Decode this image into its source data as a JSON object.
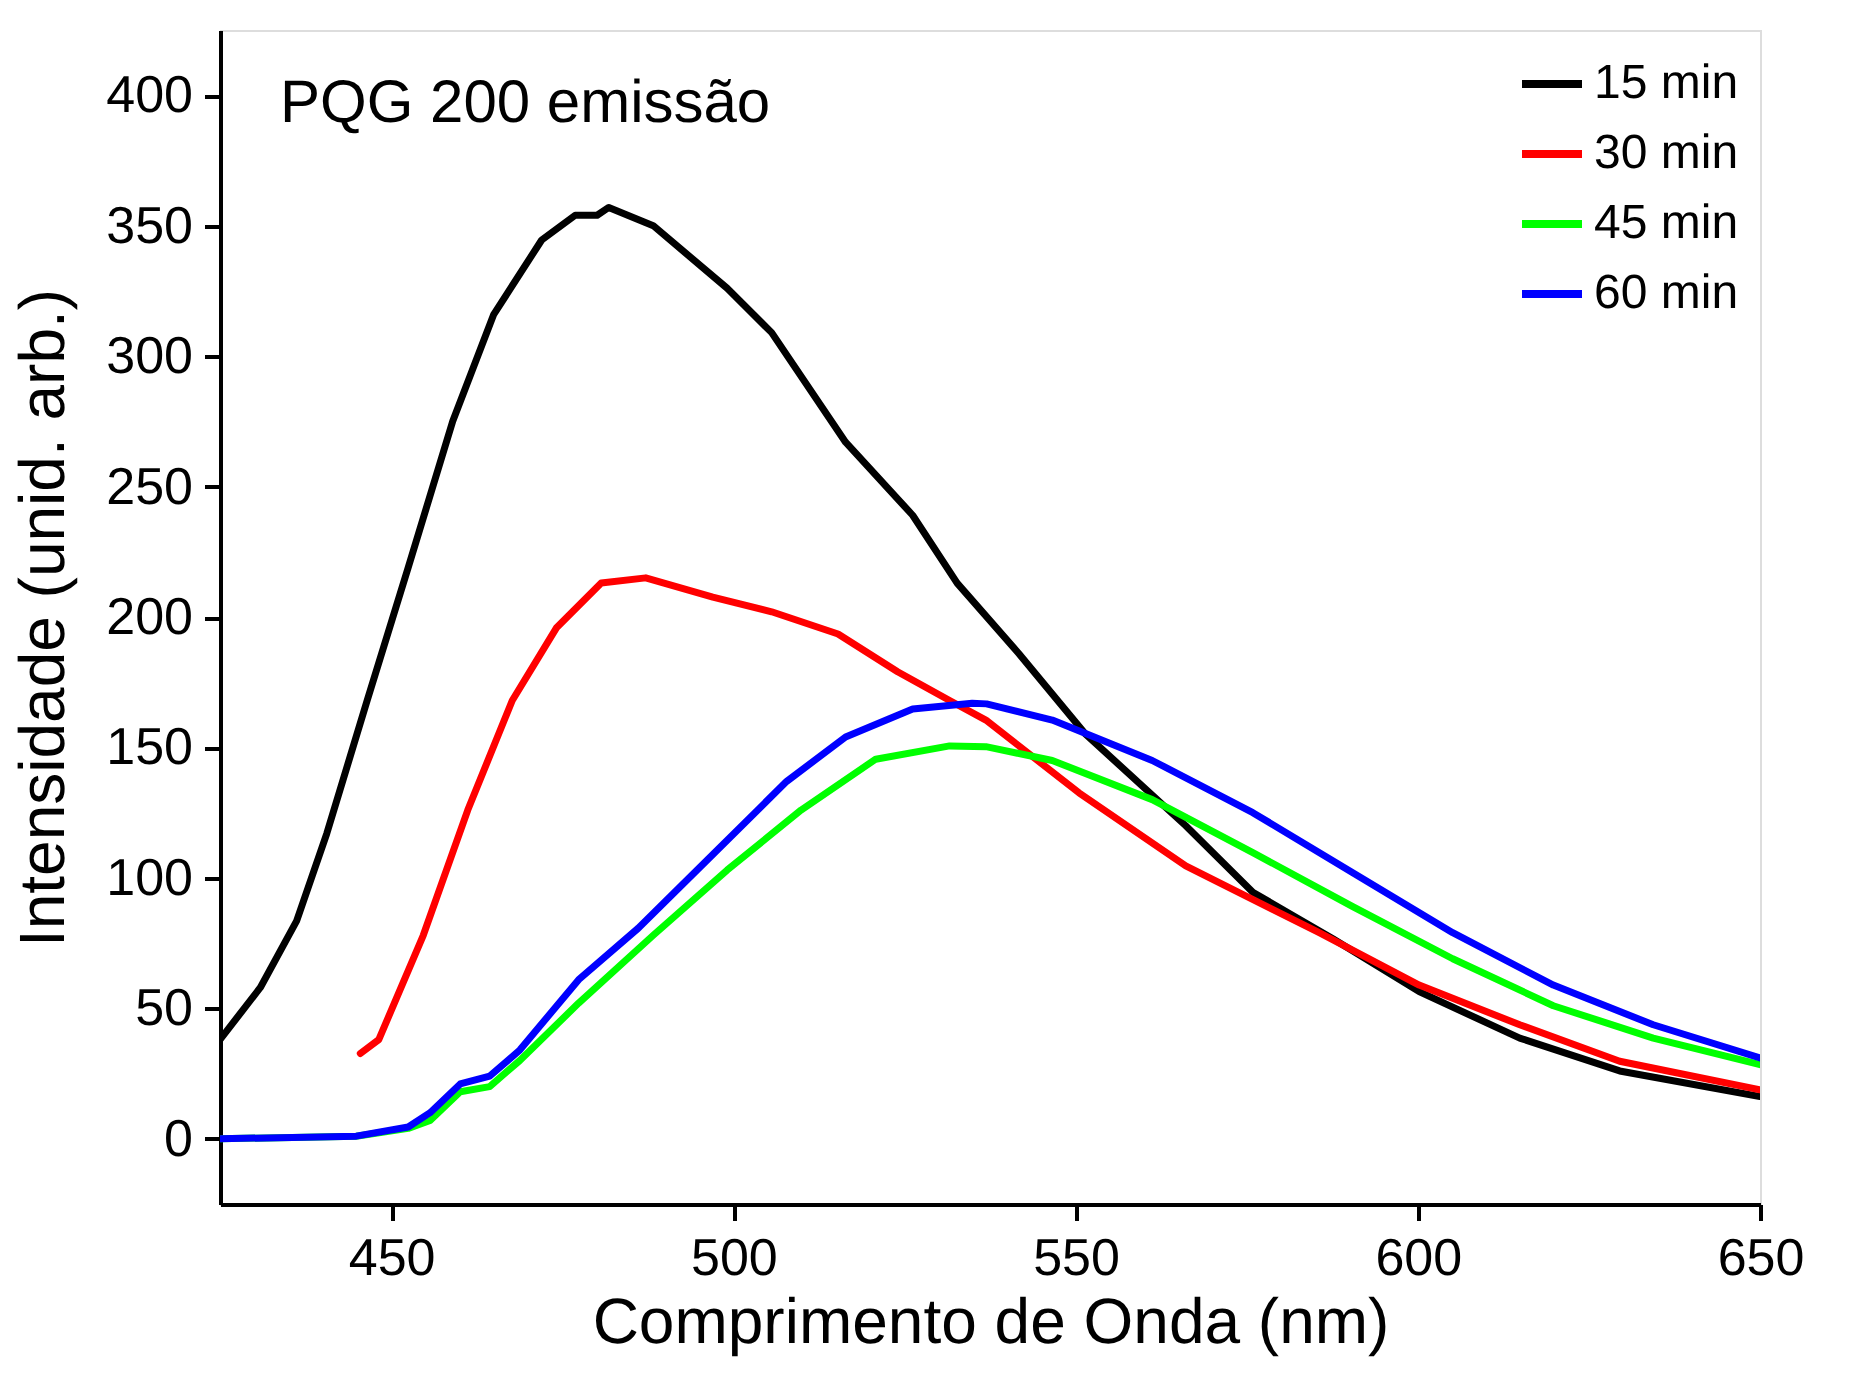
{
  "chart_data": {
    "type": "line",
    "xlabel": "Comprimento de Onda (nm)",
    "ylabel": "Intensidade (unid. arb.)",
    "annotations": [
      "PQG 200 emissão"
    ],
    "xlim": [
      425,
      650
    ],
    "xticks": [
      450,
      500,
      550,
      600,
      650
    ],
    "ylim": [
      -25,
      425
    ],
    "yticks": [
      0,
      50,
      100,
      150,
      200,
      250,
      300,
      350,
      400
    ],
    "grid": false,
    "legend": "top right",
    "marker": "none",
    "line_style": "solid",
    "series": [
      {
        "name": "15 min",
        "color": "#000000",
        "x": [
          425,
          430.9,
          436.2,
          440.6,
          446.5,
          452.5,
          459,
          465,
          472,
          476.9,
          480.1,
          481.8,
          488.3,
          499.1,
          505.6,
          516.4,
          526.2,
          532.7,
          541.7,
          551.5,
          566.1,
          575.9,
          587.6,
          600.2,
          614.9,
          629.5,
          650
        ],
        "values": [
          38,
          58,
          83.5,
          117,
          168,
          219,
          275,
          316,
          344.5,
          354,
          354,
          357,
          350,
          326,
          309,
          267,
          239,
          213,
          186,
          155,
          120,
          94.5,
          76.7,
          56.4,
          38.6,
          26,
          16.2
        ]
      },
      {
        "name": "30 min",
        "color": "#ff0000",
        "x": [
          445.5,
          448.2,
          454.7,
          461.2,
          467.7,
          474.2,
          480.7,
          487.2,
          497,
          505.6,
          515.3,
          524,
          531.6,
          536.9,
          550.5,
          566.1,
          585.6,
          600.2,
          614.9,
          629.5,
          650
        ],
        "values": [
          32.7,
          38,
          78,
          126,
          168,
          196,
          213,
          215,
          207.6,
          202,
          193.5,
          179,
          168,
          160.5,
          132.6,
          104.6,
          79,
          58.9,
          43.7,
          29.7,
          18.8
        ]
      },
      {
        "name": "45 min",
        "color": "#00ff00",
        "x": [
          425,
          444.9,
          452.5,
          455.7,
          460.1,
          464.4,
          468.8,
          477.4,
          488.3,
          499.1,
          509.9,
          520.8,
          531.6,
          536.9,
          546.6,
          561.2,
          575.9,
          590.5,
          605.1,
          619.8,
          634.4,
          650
        ],
        "values": [
          0,
          1,
          4,
          7,
          18,
          20,
          30,
          52,
          78,
          103,
          126,
          145.5,
          150.6,
          150.3,
          145,
          130,
          109.7,
          89,
          69,
          51,
          38.6,
          28.4
        ]
      },
      {
        "name": "60 min",
        "color": "#0000ff",
        "x": [
          425,
          444.9,
          452.5,
          455.7,
          460.1,
          464.4,
          468.8,
          477.4,
          486.1,
          497,
          507.8,
          516.4,
          526.2,
          534.9,
          537,
          546.6,
          561.2,
          575.9,
          590.5,
          605.1,
          619.8,
          634.4,
          650
        ],
        "values": [
          0,
          1,
          4.5,
          10,
          21,
          24,
          34,
          61,
          80.7,
          109,
          137,
          154,
          164.7,
          166.9,
          166.7,
          160.5,
          145,
          125,
          102,
          79,
          58.9,
          43.7,
          31
        ]
      }
    ]
  }
}
